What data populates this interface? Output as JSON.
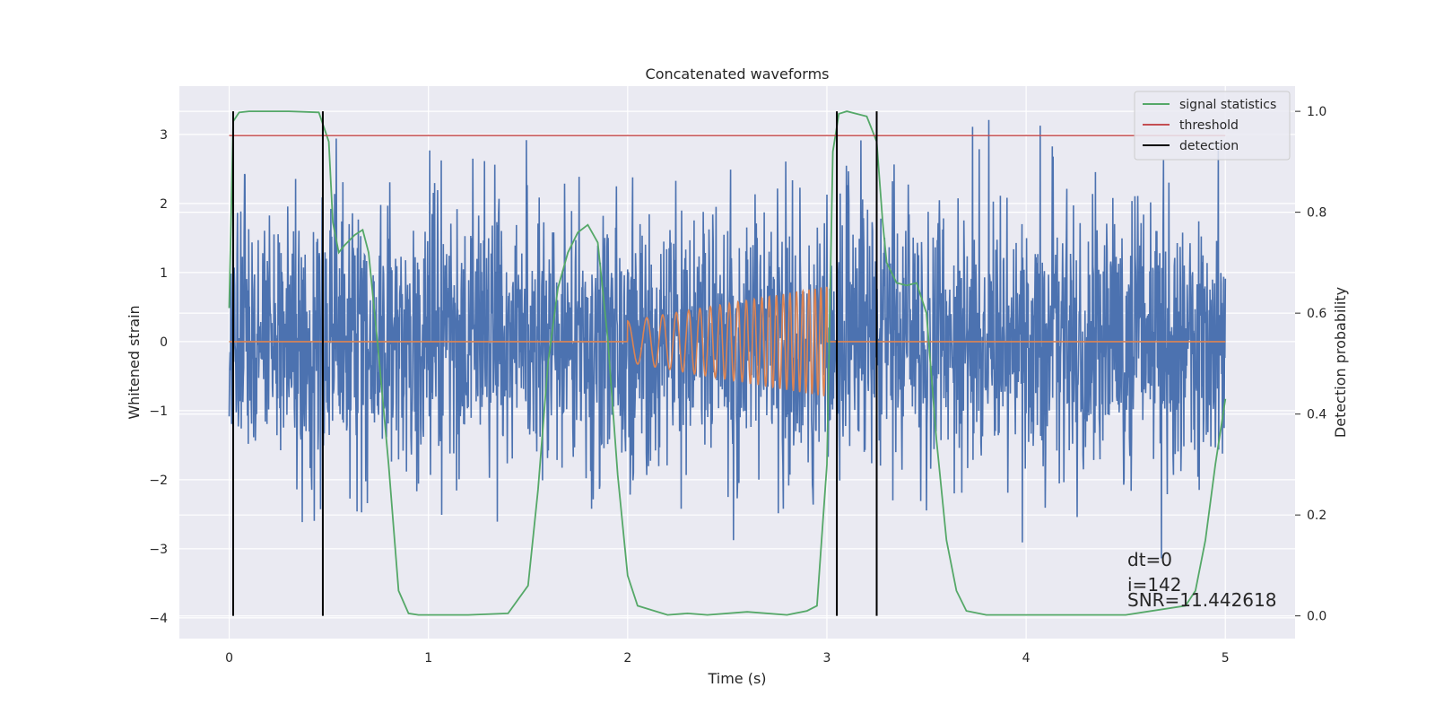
{
  "chart_data": {
    "type": "line",
    "title": "Concatenated waveforms",
    "xlabel": "Time (s)",
    "ylabel": "Whitened strain",
    "ylabel_right": "Detection probability",
    "xlim": [
      -0.25,
      5.35
    ],
    "ylim": [
      -4.3,
      3.7
    ],
    "ylim_right": [
      -0.045,
      1.05
    ],
    "x_ticks": [
      0,
      1,
      2,
      3,
      4,
      5
    ],
    "x_tick_labels": [
      "0",
      "1",
      "2",
      "3",
      "4",
      "5"
    ],
    "y_ticks": [
      3,
      2,
      1,
      0,
      -1,
      -2,
      -3,
      -4
    ],
    "y_tick_labels": [
      "3",
      "2",
      "1",
      "0",
      "−1",
      "−2",
      "−3",
      "−4"
    ],
    "y_right_ticks": [
      1.0,
      0.8,
      0.6,
      0.4,
      0.2,
      0.0
    ],
    "y_right_tick_labels": [
      "1.0",
      "0.8",
      "0.6",
      "0.4",
      "0.2",
      "0.0"
    ],
    "grid": true,
    "legend_position": "top-right",
    "legend": [
      {
        "label": "signal statistics",
        "color": "#55a868"
      },
      {
        "label": "threshold",
        "color": "#c44e52"
      },
      {
        "label": "detection",
        "color": "#000000"
      }
    ],
    "colors": {
      "strain": "#4c72b0",
      "template": "#dd8452",
      "background": "#eaeaf2",
      "grid": "#ffffff"
    },
    "series": [
      {
        "id": "strain",
        "axis": "left",
        "x_range": [
          0,
          5
        ],
        "amplitude": 1.0,
        "max": 3.3,
        "min": -3.9
      },
      {
        "id": "template",
        "axis": "left",
        "x": [
          0,
          2,
          3,
          5
        ],
        "envelope": [
          0,
          0.3,
          0.8,
          0
        ],
        "frequency_hz": [
          0,
          9,
          35,
          0
        ]
      },
      {
        "name": "signal statistics",
        "axis": "right",
        "x": [
          0.0,
          0.02,
          0.05,
          0.1,
          0.3,
          0.45,
          0.5,
          0.52,
          0.55,
          0.58,
          0.63,
          0.67,
          0.7,
          0.75,
          0.8,
          0.85,
          0.9,
          0.95,
          1.0,
          1.2,
          1.4,
          1.5,
          1.55,
          1.6,
          1.65,
          1.7,
          1.75,
          1.8,
          1.85,
          1.9,
          1.95,
          2.0,
          2.05,
          2.2,
          2.3,
          2.4,
          2.6,
          2.8,
          2.9,
          2.95,
          3.0,
          3.03,
          3.06,
          3.1,
          3.2,
          3.25,
          3.28,
          3.3,
          3.35,
          3.4,
          3.45,
          3.5,
          3.55,
          3.6,
          3.65,
          3.7,
          3.8,
          4.0,
          4.5,
          4.8,
          4.85,
          4.9,
          4.95,
          5.0
        ],
        "y": [
          0.61,
          0.98,
          0.998,
          1.0,
          1.0,
          0.998,
          0.94,
          0.78,
          0.72,
          0.735,
          0.755,
          0.765,
          0.72,
          0.52,
          0.3,
          0.05,
          0.005,
          0.002,
          0.002,
          0.002,
          0.005,
          0.06,
          0.25,
          0.5,
          0.65,
          0.72,
          0.76,
          0.775,
          0.74,
          0.55,
          0.28,
          0.08,
          0.02,
          0.002,
          0.005,
          0.002,
          0.008,
          0.002,
          0.01,
          0.02,
          0.3,
          0.92,
          0.995,
          1.0,
          0.99,
          0.94,
          0.78,
          0.7,
          0.66,
          0.655,
          0.66,
          0.6,
          0.35,
          0.15,
          0.05,
          0.01,
          0.002,
          0.002,
          0.002,
          0.02,
          0.05,
          0.15,
          0.3,
          0.43
        ]
      },
      {
        "name": "threshold",
        "axis": "right",
        "x": [
          0,
          5
        ],
        "y": [
          0.952,
          0.952
        ]
      }
    ],
    "detections_x": [
      0.02,
      0.47,
      3.05,
      3.25
    ],
    "annotations": [
      "dt=0",
      "i=142",
      "SNR=11.442618"
    ]
  }
}
